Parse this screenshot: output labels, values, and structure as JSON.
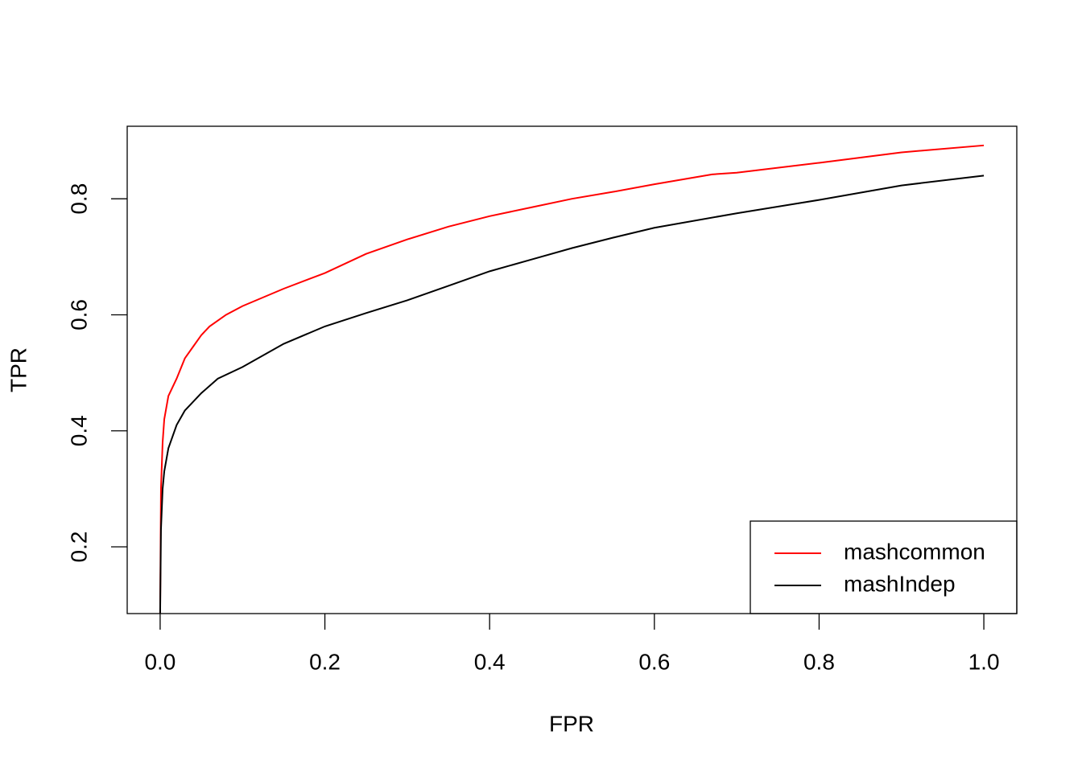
{
  "chart_data": {
    "type": "line",
    "x_label": "FPR",
    "y_label": "TPR",
    "xlim": [
      -0.04,
      1.04
    ],
    "ylim": [
      0.085,
      0.925
    ],
    "xticks": [
      {
        "value": 0,
        "label": "0.0"
      },
      0.2,
      0.4,
      0.6,
      0.8,
      {
        "value": 1,
        "label": "1.0"
      }
    ],
    "yticks": [
      0.2,
      0.4,
      0.6,
      0.8
    ],
    "legend_position": "bottomright",
    "series": [
      {
        "name": "mashcommon",
        "color": "#ff0000",
        "x": [
          0,
          0.001,
          0.003,
          0.005,
          0.01,
          0.02,
          0.03,
          0.04,
          0.05,
          0.06,
          0.08,
          0.1,
          0.15,
          0.2,
          0.25,
          0.3,
          0.35,
          0.4,
          0.45,
          0.5,
          0.55,
          0.6,
          0.67,
          0.7,
          0.8,
          0.9,
          1.0
        ],
        "values": [
          0.085,
          0.3,
          0.38,
          0.42,
          0.46,
          0.49,
          0.525,
          0.545,
          0.565,
          0.58,
          0.6,
          0.615,
          0.645,
          0.672,
          0.705,
          0.73,
          0.752,
          0.77,
          0.785,
          0.8,
          0.812,
          0.825,
          0.842,
          0.845,
          0.862,
          0.88,
          0.892
        ]
      },
      {
        "name": "mashIndep",
        "color": "#000000",
        "x": [
          0,
          0.001,
          0.003,
          0.005,
          0.01,
          0.02,
          0.03,
          0.05,
          0.07,
          0.1,
          0.15,
          0.2,
          0.25,
          0.3,
          0.35,
          0.4,
          0.45,
          0.5,
          0.55,
          0.6,
          0.7,
          0.8,
          0.9,
          1.0
        ],
        "values": [
          0.085,
          0.23,
          0.3,
          0.33,
          0.37,
          0.41,
          0.435,
          0.465,
          0.49,
          0.51,
          0.55,
          0.58,
          0.603,
          0.625,
          0.65,
          0.675,
          0.695,
          0.715,
          0.733,
          0.75,
          0.775,
          0.798,
          0.823,
          0.84
        ]
      }
    ]
  }
}
